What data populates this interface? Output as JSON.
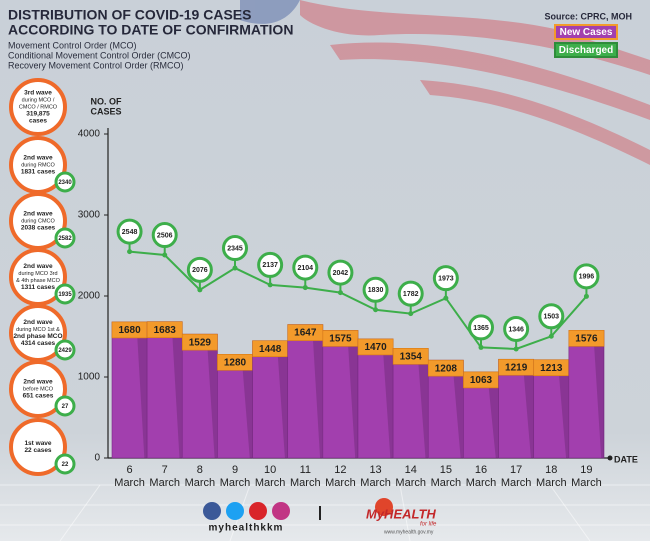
{
  "chart_data": {
    "type": "bar",
    "title": [
      "DISTRIBUTION OF COVID-19 CASES",
      "ACCORDING TO DATE OF CONFIRMATION"
    ],
    "subtitle": [
      "Movement Control Order (MCO)",
      "Conditional Movement Control Order (CMCO)",
      "Recovery Movement Control Order (RMCO)"
    ],
    "source": "Source: CPRC, MOH",
    "y_label": [
      "NO. OF",
      "CASES"
    ],
    "x_label": "DATE",
    "categories": [
      [
        "6",
        "March"
      ],
      [
        "7",
        "March"
      ],
      [
        "8",
        "March"
      ],
      [
        "9",
        "March"
      ],
      [
        "10",
        "March"
      ],
      [
        "11",
        "March"
      ],
      [
        "12",
        "March"
      ],
      [
        "13",
        "March"
      ],
      [
        "14",
        "March"
      ],
      [
        "15",
        "March"
      ],
      [
        "16",
        "March"
      ],
      [
        "17",
        "March"
      ],
      [
        "18",
        "March"
      ],
      [
        "19",
        "March"
      ]
    ],
    "series": [
      {
        "name": "New Cases",
        "color": "#a23fae",
        "label_color": "#f39a2b",
        "values": [
          1680,
          1683,
          1529,
          1280,
          1448,
          1647,
          1575,
          1470,
          1354,
          1208,
          1063,
          1219,
          1213,
          1576
        ]
      },
      {
        "name": "Discharged",
        "type": "line",
        "color": "#3dae4a",
        "values": [
          2548,
          2506,
          2076,
          2345,
          2137,
          2104,
          2042,
          1830,
          1782,
          1973,
          1365,
          1346,
          1503,
          1996
        ]
      }
    ],
    "ylim": [
      0,
      4000
    ],
    "yticks": [
      0,
      1000,
      2000,
      3000,
      4000
    ]
  },
  "waves": [
    {
      "lines": [
        "3rd wave",
        "during MCO /",
        "CMCO / RMCO",
        "319,875",
        "cases"
      ]
    },
    {
      "lines": [
        "2nd wave",
        "during RMCO",
        "1831 cases"
      ],
      "discharged": 2340
    },
    {
      "lines": [
        "2nd wave",
        "during CMCO",
        "2038 cases"
      ],
      "discharged": 2582
    },
    {
      "lines": [
        "2nd wave",
        "during MCO 3rd",
        "& 4th phase MCO",
        "1311 cases"
      ],
      "discharged": 1935
    },
    {
      "lines": [
        "2nd wave",
        "during MCO 1st &",
        "2nd phase MCO",
        "4314 cases"
      ],
      "discharged": 2429
    },
    {
      "lines": [
        "2nd wave",
        "before MCO",
        "651 cases"
      ],
      "discharged": 27
    },
    {
      "lines": [
        "1st wave",
        "22 cases"
      ],
      "discharged": 22
    }
  ],
  "footer": {
    "handle": "myhealthkkm",
    "brand": "MyHEALTH",
    "tagline": "for life",
    "url": "www.myhealth.gov.my"
  }
}
